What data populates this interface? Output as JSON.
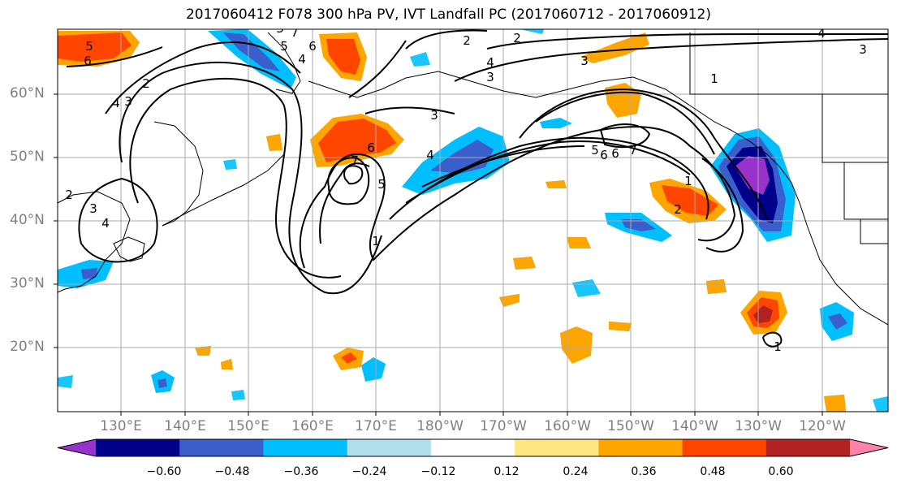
{
  "title": "2017060412 F078 300 hPa PV, IVT Landfall PC (2017060712 - 2017060912)",
  "lat_labels": [
    "60°N",
    "50°N",
    "40°N",
    "30°N",
    "20°N"
  ],
  "lon_labels": [
    "130°E",
    "140°E",
    "150°E",
    "160°E",
    "170°E",
    "180°W",
    "170°W",
    "160°W",
    "150°W",
    "140°W",
    "130°W",
    "120°W"
  ],
  "colorbar": {
    "ticks": [
      "−0.60",
      "−0.48",
      "−0.36",
      "−0.24",
      "−0.12",
      "0.12",
      "0.24",
      "0.36",
      "0.48",
      "0.60"
    ],
    "colors": [
      "#9932cc",
      "#00008b",
      "#3a5fcd",
      "#00bfff",
      "#b2dfee",
      "#ffffff",
      "#ffe680",
      "#ffa500",
      "#ff4500",
      "#b22222",
      "#ff82ab"
    ]
  },
  "contour_labels": [
    "5",
    "6",
    "4",
    "3",
    "2",
    "1",
    "7",
    "6",
    "5",
    "4",
    "3",
    "2",
    "3",
    "2",
    "3",
    "4",
    "6",
    "7",
    "5",
    "4",
    "3",
    "1",
    "5",
    "6",
    "7",
    "1",
    "2",
    "3",
    "4",
    "6",
    "1",
    "2",
    "3",
    "4"
  ]
}
